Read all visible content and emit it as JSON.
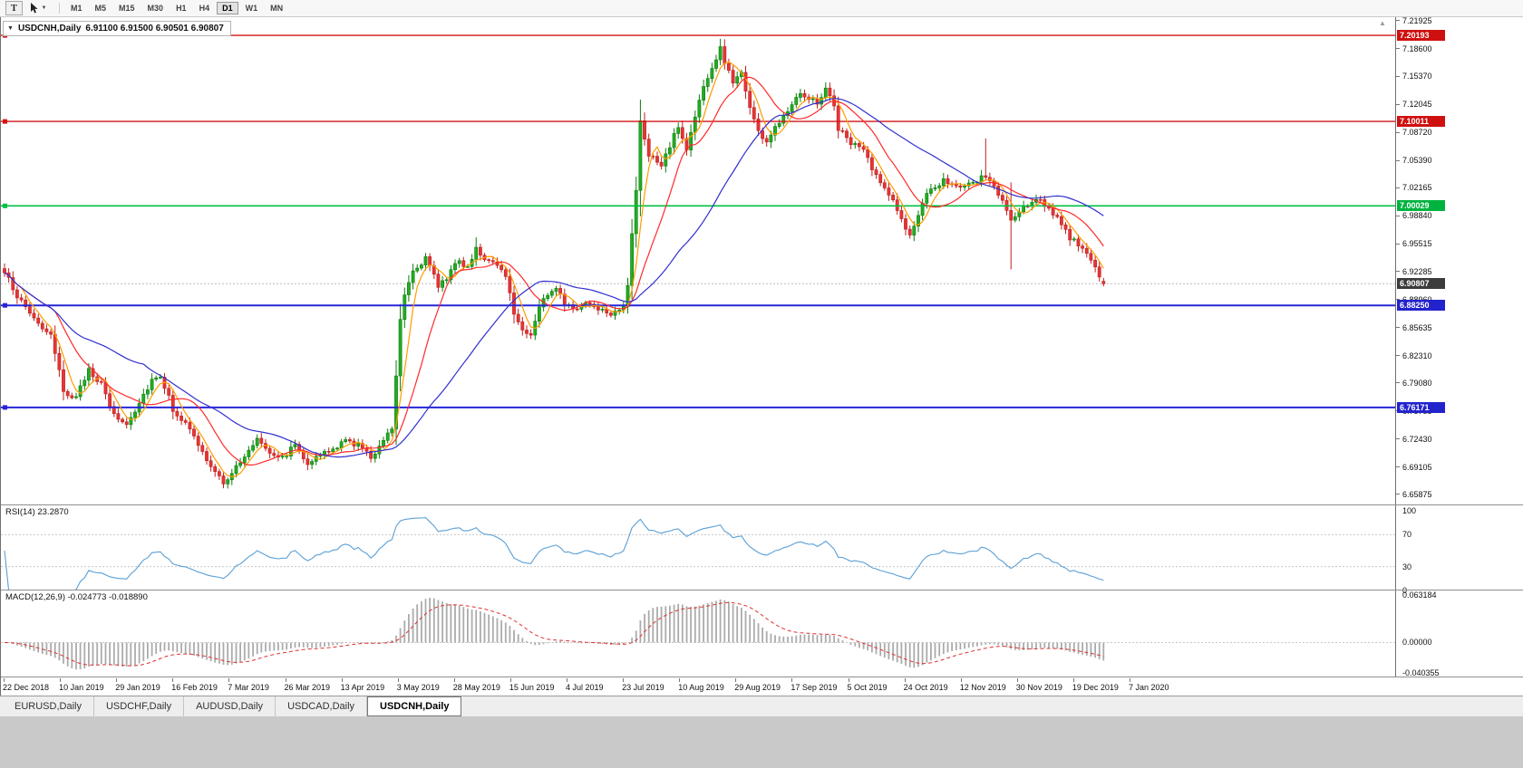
{
  "toolbar": {
    "text_tool_label": "T",
    "timeframes": [
      "M1",
      "M5",
      "M15",
      "M30",
      "H1",
      "H4",
      "D1",
      "W1",
      "MN"
    ],
    "active_timeframe": "D1"
  },
  "header": {
    "symbol": "USDCNH,Daily",
    "ohlc": "6.91100 6.91500 6.90501 6.90807"
  },
  "price_axis": {
    "labels": [
      "7.21925",
      "7.18600",
      "7.15370",
      "7.12045",
      "7.08720",
      "7.05390",
      "7.02165",
      "6.98840",
      "6.95515",
      "6.92285",
      "6.88960",
      "6.85635",
      "6.82310",
      "6.79080",
      "6.75755",
      "6.72430",
      "6.69105",
      "6.65875"
    ],
    "badges": [
      {
        "name": "resistance-1",
        "value": "7.20193",
        "price": 7.20193,
        "color": "#cf1010"
      },
      {
        "name": "resistance-2",
        "value": "7.10011",
        "price": 7.10011,
        "color": "#cf1010"
      },
      {
        "name": "round-level",
        "value": "7.00029",
        "price": 7.00029,
        "color": "#00b33f"
      },
      {
        "name": "current-price",
        "value": "6.90807",
        "price": 6.90807,
        "color": "#3c3c3c"
      },
      {
        "name": "support-1",
        "value": "6.88250",
        "price": 6.8825,
        "color": "#2323cd"
      },
      {
        "name": "support-2",
        "value": "6.76171",
        "price": 6.76171,
        "color": "#2323cd"
      }
    ]
  },
  "rsi": {
    "label": "RSI(14) 23.2870",
    "name": "RSI",
    "period": 14,
    "current": 23.287,
    "axis_labels": [
      "100",
      "70",
      "30",
      "0"
    ],
    "levels": [
      70,
      30
    ],
    "line_color": "#5a9fd6"
  },
  "macd": {
    "label": "MACD(12,26,9) -0.024773 -0.018890",
    "name": "MACD",
    "params": [
      12,
      26,
      9
    ],
    "main_value": -0.024773,
    "signal_value": -0.01889,
    "axis_labels": [
      "0.063184",
      "0.00000",
      "-0.040355"
    ],
    "scale_max": 0.063184,
    "scale_min": -0.040355,
    "histogram_color": "#ababab",
    "signal_color": "#e03030"
  },
  "time_axis": {
    "labels": [
      "22 Dec 2018",
      "10 Jan 2019",
      "29 Jan 2019",
      "16 Feb 2019",
      "7 Mar 2019",
      "26 Mar 2019",
      "13 Apr 2019",
      "3 May 2019",
      "28 May 2019",
      "15 Jun 2019",
      "4 Jul 2019",
      "23 Jul 2019",
      "10 Aug 2019",
      "29 Aug 2019",
      "17 Sep 2019",
      "5 Oct 2019",
      "24 Oct 2019",
      "12 Nov 2019",
      "30 Nov 2019",
      "19 Dec 2019",
      "7 Jan 2020"
    ]
  },
  "tabs": {
    "items": [
      {
        "label": "EURUSD,Daily",
        "active": false
      },
      {
        "label": "USDCHF,Daily",
        "active": false
      },
      {
        "label": "AUDUSD,Daily",
        "active": false
      },
      {
        "label": "USDCAD,Daily",
        "active": false
      },
      {
        "label": "USDCNH,Daily",
        "active": true
      }
    ]
  },
  "chart_data": {
    "type": "candlestick",
    "symbol": "USDCNH",
    "timeframe": "Daily",
    "bars": 262,
    "ylim": [
      6.6469,
      7.2235
    ],
    "bid_price": 6.90807,
    "last_bar": {
      "open": 6.911,
      "high": 6.915,
      "low": 6.90501,
      "close": 6.90807
    },
    "close_anchors": [
      [
        0,
        6.921
      ],
      [
        4,
        6.886
      ],
      [
        8,
        6.862
      ],
      [
        11,
        6.845
      ],
      [
        14,
        6.782
      ],
      [
        17,
        6.772
      ],
      [
        20,
        6.808
      ],
      [
        23,
        6.788
      ],
      [
        26,
        6.752
      ],
      [
        29,
        6.742
      ],
      [
        32,
        6.768
      ],
      [
        35,
        6.795
      ],
      [
        37,
        6.8
      ],
      [
        40,
        6.76
      ],
      [
        43,
        6.742
      ],
      [
        46,
        6.718
      ],
      [
        49,
        6.69
      ],
      [
        52,
        6.673
      ],
      [
        54,
        6.685
      ],
      [
        57,
        6.702
      ],
      [
        60,
        6.726
      ],
      [
        63,
        6.71
      ],
      [
        66,
        6.702
      ],
      [
        69,
        6.718
      ],
      [
        72,
        6.697
      ],
      [
        75,
        6.705
      ],
      [
        78,
        6.712
      ],
      [
        81,
        6.722
      ],
      [
        84,
        6.718
      ],
      [
        87,
        6.702
      ],
      [
        90,
        6.725
      ],
      [
        92,
        6.738
      ],
      [
        93,
        6.8
      ],
      [
        94,
        6.868
      ],
      [
        95,
        6.898
      ],
      [
        97,
        6.924
      ],
      [
        100,
        6.938
      ],
      [
        103,
        6.906
      ],
      [
        105,
        6.916
      ],
      [
        107,
        6.934
      ],
      [
        110,
        6.928
      ],
      [
        112,
        6.952
      ],
      [
        114,
        6.936
      ],
      [
        117,
        6.928
      ],
      [
        119,
        6.92
      ],
      [
        121,
        6.872
      ],
      [
        123,
        6.856
      ],
      [
        125,
        6.846
      ],
      [
        127,
        6.882
      ],
      [
        129,
        6.896
      ],
      [
        131,
        6.906
      ],
      [
        133,
        6.886
      ],
      [
        135,
        6.876
      ],
      [
        138,
        6.886
      ],
      [
        141,
        6.88
      ],
      [
        144,
        6.874
      ],
      [
        147,
        6.882
      ],
      [
        148,
        6.908
      ],
      [
        150,
        7.02
      ],
      [
        151,
        7.098
      ],
      [
        153,
        7.062
      ],
      [
        156,
        7.046
      ],
      [
        158,
        7.072
      ],
      [
        160,
        7.094
      ],
      [
        162,
        7.066
      ],
      [
        164,
        7.108
      ],
      [
        166,
        7.14
      ],
      [
        168,
        7.162
      ],
      [
        170,
        7.186
      ],
      [
        171,
        7.17
      ],
      [
        173,
        7.148
      ],
      [
        175,
        7.158
      ],
      [
        177,
        7.118
      ],
      [
        179,
        7.088
      ],
      [
        181,
        7.076
      ],
      [
        183,
        7.092
      ],
      [
        185,
        7.108
      ],
      [
        187,
        7.122
      ],
      [
        189,
        7.136
      ],
      [
        191,
        7.128
      ],
      [
        193,
        7.122
      ],
      [
        195,
        7.14
      ],
      [
        197,
        7.118
      ],
      [
        198,
        7.092
      ],
      [
        200,
        7.08
      ],
      [
        202,
        7.072
      ],
      [
        204,
        7.066
      ],
      [
        206,
        7.044
      ],
      [
        208,
        7.026
      ],
      [
        210,
        7.016
      ],
      [
        212,
        6.996
      ],
      [
        214,
        6.972
      ],
      [
        215,
        6.964
      ],
      [
        217,
        6.99
      ],
      [
        219,
        7.012
      ],
      [
        221,
        7.022
      ],
      [
        223,
        7.032
      ],
      [
        225,
        7.028
      ],
      [
        227,
        7.02
      ],
      [
        229,
        7.024
      ],
      [
        231,
        7.03
      ],
      [
        233,
        7.036
      ],
      [
        235,
        7.022
      ],
      [
        237,
        7.006
      ],
      [
        239,
        6.982
      ],
      [
        241,
        6.992
      ],
      [
        243,
        7.002
      ],
      [
        245,
        7.01
      ],
      [
        247,
        7.002
      ],
      [
        249,
        6.992
      ],
      [
        251,
        6.976
      ],
      [
        253,
        6.962
      ],
      [
        255,
        6.956
      ],
      [
        257,
        6.944
      ],
      [
        259,
        6.928
      ],
      [
        260,
        6.916
      ],
      [
        261,
        6.90807
      ]
    ],
    "spikes": [
      {
        "i": 112,
        "high": 6.963
      },
      {
        "i": 151,
        "low": 6.988
      },
      {
        "i": 170,
        "high": 7.198
      },
      {
        "i": 233,
        "high": 7.08
      },
      {
        "i": 239,
        "low": 6.925,
        "high": 7.028
      }
    ],
    "horizontal_levels": [
      {
        "name": "resistance-line-1",
        "price": 7.20193,
        "color": "#d41414",
        "width": 1.4
      },
      {
        "name": "resistance-line-2",
        "price": 7.10011,
        "color": "#d41414",
        "width": 1.4
      },
      {
        "name": "round-level-line",
        "price": 7.00029,
        "color": "#00c044",
        "width": 1.6
      },
      {
        "name": "support-line-1",
        "price": 6.8825,
        "color": "#2626d8",
        "width": 2
      },
      {
        "name": "support-line-2",
        "price": 6.76171,
        "color": "#2626d8",
        "width": 2
      }
    ],
    "moving_averages": [
      {
        "name": "ma-fast",
        "period": 5,
        "color": "#ff9c00"
      },
      {
        "name": "ma-mid",
        "period": 13,
        "color": "#ff2a2a"
      },
      {
        "name": "ma-slow",
        "period": 34,
        "color": "#3030d0"
      }
    ],
    "candle_colors": {
      "bull_fill": "#22ac22",
      "bull_border": "#0d7d0d",
      "bear_fill": "#e63535",
      "bear_border": "#bf1f1f"
    }
  }
}
